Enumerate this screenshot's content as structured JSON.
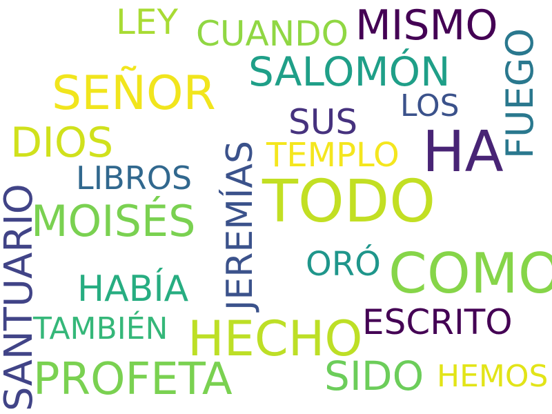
{
  "cloud": {
    "words": [
      {
        "text": "TODO",
        "color": "#c2df23"
      },
      {
        "text": "COMO",
        "color": "#86d549"
      },
      {
        "text": "HA",
        "color": "#482475"
      },
      {
        "text": "HECHO",
        "color": "#bddf26"
      },
      {
        "text": "PROFETA",
        "color": "#7ad151"
      },
      {
        "text": "SEÑOR",
        "color": "#f1e51d"
      },
      {
        "text": "MOISÉS",
        "color": "#7ad151"
      },
      {
        "text": "MISMO",
        "color": "#440154"
      },
      {
        "text": "SALOMÓN",
        "color": "#1f9f88"
      },
      {
        "text": "JEREMÍAS",
        "color": "#3b528b"
      },
      {
        "text": "SANTUARIO",
        "color": "#414487"
      },
      {
        "text": "FUEGO",
        "color": "#2a788e"
      },
      {
        "text": "DIOS",
        "color": "#d0e11c"
      },
      {
        "text": "SIDO",
        "color": "#6ccd5a"
      },
      {
        "text": "HABÍA",
        "color": "#27ad81"
      },
      {
        "text": "ESCRITO",
        "color": "#440154"
      },
      {
        "text": "CUANDO",
        "color": "#90d743"
      },
      {
        "text": "LEY",
        "color": "#a8db34"
      },
      {
        "text": "SUS",
        "color": "#46327e"
      },
      {
        "text": "TEMPLO",
        "color": "#f4e61e"
      },
      {
        "text": "LIBROS",
        "color": "#31688e"
      },
      {
        "text": "ORÓ",
        "color": "#1f968b"
      },
      {
        "text": "TAMBIÉN",
        "color": "#35b779"
      },
      {
        "text": "LOS",
        "color": "#3b528b"
      },
      {
        "text": "HEMOS",
        "color": "#e2e418"
      }
    ]
  }
}
